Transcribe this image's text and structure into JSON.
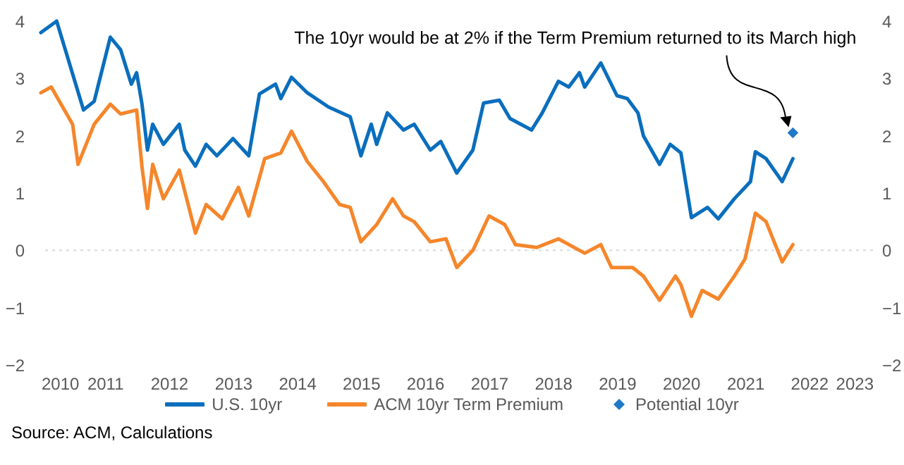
{
  "chart_data": {
    "type": "line",
    "xlim": [
      "2010",
      "2023"
    ],
    "xticks": [
      "2010",
      "2011",
      "2012",
      "2013",
      "2014",
      "2015",
      "2016",
      "2017",
      "2018",
      "2019",
      "2020",
      "2021",
      "2022",
      "2023"
    ],
    "ylim": [
      -2,
      4
    ],
    "yticks": [
      -2,
      -1,
      0,
      1,
      2,
      3,
      4
    ],
    "y2lim": [
      -2,
      4
    ],
    "y2ticks": [
      -2,
      -1,
      0,
      1,
      2,
      3,
      4
    ],
    "legend": "bottom",
    "ref_lines": [
      {
        "axis": "y",
        "value": 0,
        "color": "#d9d9d9",
        "line_style": "dotted"
      }
    ],
    "annotations": [
      "The 10yr would be at 2% if the Term Premium returned to its March high",
      "Source: ACM, Calculations"
    ],
    "series": [
      {
        "name": "U.S. 10yr",
        "color": "#0a6ebd",
        "x": [
          "2010-01",
          "2010-04",
          "2010-09",
          "2010-11",
          "2011-02",
          "2011-04",
          "2011-06",
          "2011-07",
          "2011-08",
          "2011-09",
          "2011-10",
          "2011-12",
          "2012-03",
          "2012-04",
          "2012-06",
          "2012-08",
          "2012-10",
          "2013-01",
          "2013-04",
          "2013-06",
          "2013-09",
          "2013-10",
          "2013-12",
          "2014-03",
          "2014-07",
          "2014-11",
          "2015-01",
          "2015-03",
          "2015-04",
          "2015-06",
          "2015-09",
          "2015-11",
          "2016-02",
          "2016-04",
          "2016-07",
          "2016-10",
          "2016-12",
          "2017-03",
          "2017-05",
          "2017-09",
          "2017-11",
          "2018-02",
          "2018-04",
          "2018-06",
          "2018-07",
          "2018-10",
          "2019-01",
          "2019-03",
          "2019-05",
          "2019-06",
          "2019-09",
          "2019-11",
          "2020-01",
          "2020-03",
          "2020-06",
          "2020-08",
          "2020-11",
          "2021-02",
          "2021-03",
          "2021-05",
          "2021-08",
          "2021-10"
        ],
        "values": [
          3.8,
          4.0,
          2.45,
          2.6,
          3.72,
          3.5,
          2.9,
          3.1,
          2.55,
          1.75,
          2.2,
          1.85,
          2.2,
          1.75,
          1.47,
          1.85,
          1.65,
          1.95,
          1.65,
          2.73,
          2.9,
          2.65,
          3.02,
          2.75,
          2.5,
          2.33,
          1.65,
          2.2,
          1.85,
          2.4,
          2.1,
          2.2,
          1.75,
          1.9,
          1.35,
          1.75,
          2.57,
          2.62,
          2.3,
          2.1,
          2.4,
          2.95,
          2.85,
          3.1,
          2.85,
          3.27,
          2.7,
          2.65,
          2.4,
          2.0,
          1.5,
          1.85,
          1.7,
          0.57,
          0.75,
          0.55,
          0.9,
          1.2,
          1.72,
          1.6,
          1.2,
          1.6
        ]
      },
      {
        "name": "ACM 10yr Term Premium",
        "axis": "y2",
        "color": "#f5862b",
        "x": [
          "2010-01",
          "2010-03",
          "2010-07",
          "2010-08",
          "2010-11",
          "2011-02",
          "2011-04",
          "2011-07",
          "2011-08",
          "2011-09",
          "2011-10",
          "2011-12",
          "2012-03",
          "2012-06",
          "2012-08",
          "2012-11",
          "2013-02",
          "2013-04",
          "2013-07",
          "2013-10",
          "2013-12",
          "2014-03",
          "2014-06",
          "2014-09",
          "2014-11",
          "2015-01",
          "2015-04",
          "2015-07",
          "2015-09",
          "2015-11",
          "2016-02",
          "2016-05",
          "2016-07",
          "2016-10",
          "2017-01",
          "2017-04",
          "2017-06",
          "2017-10",
          "2018-02",
          "2018-07",
          "2018-10",
          "2018-12",
          "2019-04",
          "2019-06",
          "2019-09",
          "2019-12",
          "2020-01",
          "2020-03",
          "2020-05",
          "2020-08",
          "2020-11",
          "2021-01",
          "2021-03",
          "2021-05",
          "2021-08",
          "2021-10"
        ],
        "values": [
          2.75,
          2.85,
          2.2,
          1.5,
          2.2,
          2.55,
          2.38,
          2.45,
          1.45,
          0.73,
          1.5,
          0.9,
          1.4,
          0.3,
          0.8,
          0.55,
          1.1,
          0.6,
          1.6,
          1.7,
          2.08,
          1.55,
          1.2,
          0.8,
          0.75,
          0.15,
          0.45,
          0.9,
          0.6,
          0.5,
          0.15,
          0.2,
          -0.3,
          0.0,
          0.6,
          0.45,
          0.1,
          0.05,
          0.2,
          -0.05,
          0.1,
          -0.3,
          -0.3,
          -0.45,
          -0.87,
          -0.45,
          -0.6,
          -1.15,
          -0.7,
          -0.85,
          -0.45,
          -0.15,
          0.65,
          0.5,
          -0.2,
          0.1
        ]
      },
      {
        "name": "Potential 10yr",
        "type": "scatter",
        "marker": "diamond",
        "color": "#1f7ac6",
        "x": [
          "2021-10"
        ],
        "values": [
          2.05
        ]
      }
    ]
  }
}
